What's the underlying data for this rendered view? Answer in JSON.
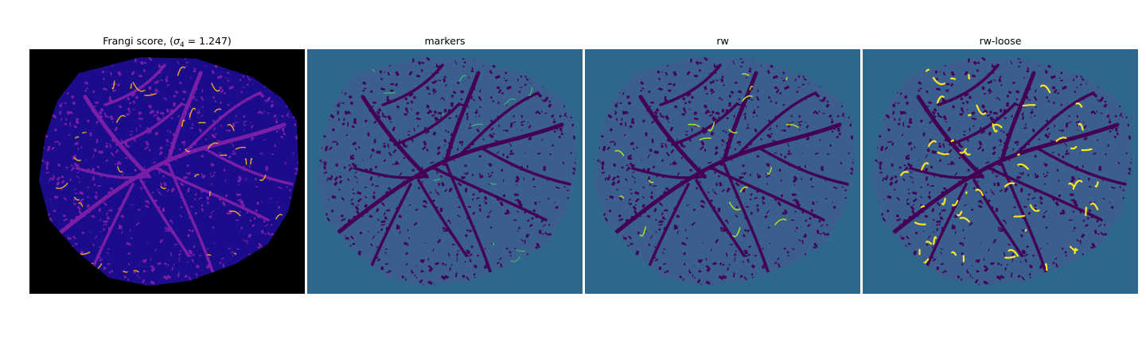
{
  "panels": [
    {
      "id": "frangi",
      "title_prefix": "Frangi score, (",
      "title_sigma": "σ",
      "title_sub": "4",
      "title_suffix": " = 1.247)",
      "colors": {
        "background": "#000000",
        "tissue": "#1b0c8c",
        "vessel": "#7a1ea8",
        "highlight": "#f5a623"
      }
    },
    {
      "id": "markers",
      "title": "markers",
      "colors": {
        "background": "#2f678c",
        "tissue": "#3b5f8c",
        "vessel": "#440154",
        "highlight": "#35b779"
      }
    },
    {
      "id": "rw",
      "title": "rw",
      "colors": {
        "background": "#2f678c",
        "tissue": "#3b5f8c",
        "vessel": "#440154",
        "highlight": "#b5de2b"
      }
    },
    {
      "id": "rw-loose",
      "title": "rw-loose",
      "colors": {
        "background": "#2f678c",
        "tissue": "#3b5f8c",
        "vessel": "#440154",
        "highlight": "#fde725"
      }
    }
  ]
}
